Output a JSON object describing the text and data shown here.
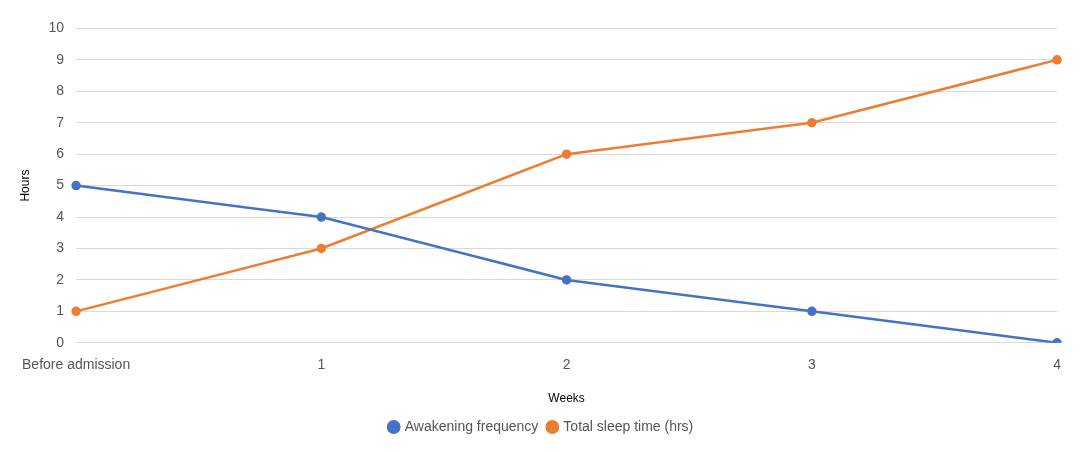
{
  "chart_data": {
    "type": "line",
    "xlabel": "Weeks",
    "ylabel": "Hours",
    "categories": [
      "Before admission",
      "1",
      "2",
      "3",
      "4"
    ],
    "series": [
      {
        "name": "Awakening frequency",
        "color": "#4472c4",
        "values": [
          5,
          4,
          2,
          1,
          0
        ]
      },
      {
        "name": "Total sleep time (hrs)",
        "color": "#ed7d31",
        "values": [
          1,
          3,
          6,
          7,
          9
        ]
      }
    ],
    "ylim": [
      0,
      10
    ],
    "yticks": [
      0,
      1,
      2,
      3,
      4,
      5,
      6,
      7,
      8,
      9,
      10
    ],
    "grid": "y",
    "legend": "bottom",
    "marker": "circle",
    "line_style": "solid"
  }
}
